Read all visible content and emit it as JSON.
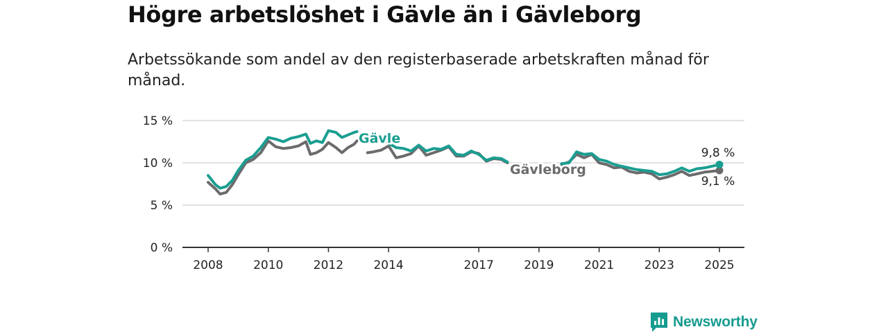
{
  "title": "Högre arbetslöshet i Gävle än i Gävleborg",
  "subtitle": "Arbetssökande som andel av den registerbaserade arbetskraften månad för månad.",
  "brand": {
    "name": "Newsworthy",
    "icon": "newsworthy-logo-icon"
  },
  "colors": {
    "gavle": "#1a9e91",
    "gavleborg": "#6b6b6d",
    "grid": "#d8d8d8",
    "axis": "#333333"
  },
  "chart_data": {
    "type": "line",
    "title": "Högre arbetslöshet i Gävle än i Gävleborg",
    "xlabel": "",
    "ylabel": "",
    "xlim": [
      2008,
      2025.3
    ],
    "ylim": [
      0,
      15
    ],
    "y_ticks": [
      0,
      5,
      10,
      15
    ],
    "y_tick_labels": [
      "0 %",
      "5 %",
      "10 %",
      "15 %"
    ],
    "x_ticks": [
      2008,
      2010,
      2012,
      2014,
      2017,
      2019,
      2021,
      2023,
      2025
    ],
    "x_tick_labels": [
      "2008",
      "2010",
      "2012",
      "2014",
      "2017",
      "2019",
      "2021",
      "2023",
      "2025"
    ],
    "grid": "horizontal",
    "series": [
      {
        "name": "Gävle",
        "end_label": "9,8 %",
        "segments": [
          [
            [
              2008.0,
              8.5
            ],
            [
              2008.25,
              7.4
            ],
            [
              2008.4,
              7.0
            ],
            [
              2008.6,
              7.2
            ],
            [
              2008.8,
              7.9
            ],
            [
              2009.0,
              9.1
            ],
            [
              2009.25,
              10.3
            ],
            [
              2009.5,
              10.8
            ],
            [
              2009.75,
              11.8
            ],
            [
              2010.0,
              13.0
            ],
            [
              2010.25,
              12.8
            ],
            [
              2010.5,
              12.5
            ],
            [
              2010.75,
              12.9
            ],
            [
              2011.0,
              13.1
            ],
            [
              2011.25,
              13.4
            ],
            [
              2011.4,
              12.3
            ],
            [
              2011.6,
              12.6
            ],
            [
              2011.8,
              12.4
            ],
            [
              2012.0,
              13.8
            ],
            [
              2012.25,
              13.6
            ],
            [
              2012.45,
              13.0
            ],
            [
              2012.65,
              13.3
            ],
            [
              2012.85,
              13.6
            ],
            [
              2012.95,
              13.7
            ]
          ],
          [
            [
              2013.9,
              12.6
            ],
            [
              2014.0,
              12.3
            ],
            [
              2014.25,
              11.8
            ],
            [
              2014.5,
              11.7
            ],
            [
              2014.75,
              11.4
            ],
            [
              2015.0,
              12.1
            ],
            [
              2015.25,
              11.4
            ],
            [
              2015.5,
              11.7
            ],
            [
              2015.75,
              11.6
            ],
            [
              2016.0,
              12.0
            ],
            [
              2016.25,
              11.0
            ],
            [
              2016.5,
              10.9
            ],
            [
              2016.75,
              11.4
            ],
            [
              2017.0,
              11.0
            ],
            [
              2017.25,
              10.3
            ],
            [
              2017.5,
              10.6
            ],
            [
              2017.75,
              10.5
            ],
            [
              2017.95,
              10.1
            ]
          ],
          [
            [
              2019.75,
              9.9
            ],
            [
              2020.0,
              10.0
            ],
            [
              2020.25,
              11.3
            ],
            [
              2020.5,
              11.0
            ],
            [
              2020.75,
              11.1
            ],
            [
              2021.0,
              10.4
            ],
            [
              2021.25,
              10.2
            ],
            [
              2021.5,
              9.8
            ],
            [
              2021.75,
              9.6
            ],
            [
              2022.0,
              9.4
            ],
            [
              2022.25,
              9.2
            ],
            [
              2022.5,
              9.1
            ],
            [
              2022.75,
              9.0
            ],
            [
              2023.0,
              8.6
            ],
            [
              2023.25,
              8.7
            ],
            [
              2023.5,
              9.0
            ],
            [
              2023.75,
              9.4
            ],
            [
              2024.0,
              9.0
            ],
            [
              2024.25,
              9.3
            ],
            [
              2024.5,
              9.4
            ],
            [
              2024.75,
              9.6
            ],
            [
              2025.0,
              9.8
            ]
          ]
        ]
      },
      {
        "name": "Gävleborg",
        "end_label": "9,1 %",
        "segments": [
          [
            [
              2008.0,
              7.7
            ],
            [
              2008.25,
              6.9
            ],
            [
              2008.4,
              6.3
            ],
            [
              2008.6,
              6.5
            ],
            [
              2008.8,
              7.4
            ],
            [
              2009.0,
              8.6
            ],
            [
              2009.25,
              10.0
            ],
            [
              2009.5,
              10.4
            ],
            [
              2009.75,
              11.2
            ],
            [
              2010.0,
              12.6
            ],
            [
              2010.25,
              11.9
            ],
            [
              2010.5,
              11.7
            ],
            [
              2010.75,
              11.8
            ],
            [
              2011.0,
              12.0
            ],
            [
              2011.25,
              12.5
            ],
            [
              2011.4,
              11.0
            ],
            [
              2011.6,
              11.2
            ],
            [
              2011.8,
              11.6
            ],
            [
              2012.0,
              12.4
            ],
            [
              2012.25,
              11.8
            ],
            [
              2012.45,
              11.2
            ],
            [
              2012.65,
              11.8
            ],
            [
              2012.85,
              12.2
            ],
            [
              2012.95,
              12.6
            ]
          ],
          [
            [
              2013.3,
              11.2
            ],
            [
              2013.5,
              11.3
            ],
            [
              2013.75,
              11.5
            ],
            [
              2014.0,
              12.0
            ],
            [
              2014.25,
              10.6
            ],
            [
              2014.5,
              10.8
            ],
            [
              2014.75,
              11.1
            ],
            [
              2015.0,
              12.0
            ],
            [
              2015.25,
              10.9
            ],
            [
              2015.5,
              11.2
            ],
            [
              2015.75,
              11.5
            ],
            [
              2016.0,
              11.9
            ],
            [
              2016.25,
              10.8
            ],
            [
              2016.5,
              10.8
            ],
            [
              2016.75,
              11.3
            ],
            [
              2017.0,
              11.1
            ],
            [
              2017.25,
              10.2
            ],
            [
              2017.5,
              10.5
            ],
            [
              2017.75,
              10.4
            ],
            [
              2017.95,
              10.0
            ]
          ],
          [
            [
              2019.75,
              9.8
            ],
            [
              2020.0,
              10.1
            ],
            [
              2020.25,
              11.0
            ],
            [
              2020.5,
              10.6
            ],
            [
              2020.75,
              11.0
            ],
            [
              2021.0,
              10.0
            ],
            [
              2021.25,
              9.8
            ],
            [
              2021.5,
              9.4
            ],
            [
              2021.75,
              9.5
            ],
            [
              2022.0,
              9.0
            ],
            [
              2022.25,
              8.8
            ],
            [
              2022.5,
              8.9
            ],
            [
              2022.75,
              8.7
            ],
            [
              2023.0,
              8.1
            ],
            [
              2023.25,
              8.3
            ],
            [
              2023.5,
              8.6
            ],
            [
              2023.75,
              9.0
            ],
            [
              2024.0,
              8.5
            ],
            [
              2024.25,
              8.7
            ],
            [
              2024.5,
              8.9
            ],
            [
              2024.75,
              9.0
            ],
            [
              2025.0,
              9.1
            ]
          ]
        ]
      }
    ]
  }
}
